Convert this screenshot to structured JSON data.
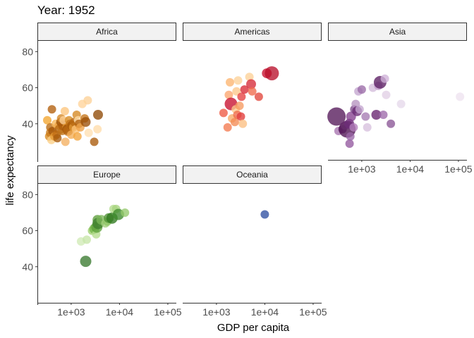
{
  "chart_data": {
    "type": "scatter",
    "title": "Year: 1952",
    "xlabel": "GDP per capita",
    "ylabel": "life expectancy",
    "x_scale": "log10",
    "xlim": [
      200,
      150000
    ],
    "ylim": [
      20,
      86
    ],
    "x_ticks": [
      {
        "value": 1000,
        "label": "1e+03"
      },
      {
        "value": 10000,
        "label": "1e+04"
      },
      {
        "value": 100000,
        "label": "1e+05"
      }
    ],
    "y_ticks": [
      {
        "value": 40,
        "label": "40"
      },
      {
        "value": 60,
        "label": "60"
      },
      {
        "value": 80,
        "label": "80"
      }
    ],
    "grid": false,
    "legend": "none",
    "facets": [
      {
        "name": "Africa",
        "points": [
          {
            "x": 320,
            "y": 42,
            "size": 6,
            "color": "#f2a52f"
          },
          {
            "x": 350,
            "y": 33,
            "size": 6,
            "color": "#d8891d"
          },
          {
            "x": 370,
            "y": 38,
            "size": 6,
            "color": "#b86a12"
          },
          {
            "x": 380,
            "y": 35,
            "size": 7,
            "color": "#c97a18"
          },
          {
            "x": 390,
            "y": 31,
            "size": 6,
            "color": "#fbcf86"
          },
          {
            "x": 400,
            "y": 48,
            "size": 6,
            "color": "#b25f0c"
          },
          {
            "x": 410,
            "y": 36,
            "size": 6,
            "color": "#a4560a"
          },
          {
            "x": 450,
            "y": 33,
            "size": 6,
            "color": "#e49833"
          },
          {
            "x": 480,
            "y": 40,
            "size": 6,
            "color": "#f7b75a"
          },
          {
            "x": 500,
            "y": 34,
            "size": 6,
            "color": "#c06d14"
          },
          {
            "x": 520,
            "y": 32,
            "size": 6,
            "color": "#a85b0b"
          },
          {
            "x": 550,
            "y": 39,
            "size": 6,
            "color": "#eaa040"
          },
          {
            "x": 580,
            "y": 37,
            "size": 7,
            "color": "#b66610"
          },
          {
            "x": 600,
            "y": 41,
            "size": 6,
            "color": "#9a4f08"
          },
          {
            "x": 620,
            "y": 43,
            "size": 6,
            "color": "#d48725"
          },
          {
            "x": 650,
            "y": 36,
            "size": 6,
            "color": "#c07419"
          },
          {
            "x": 680,
            "y": 39,
            "size": 7,
            "color": "#ad5c0d"
          },
          {
            "x": 700,
            "y": 42,
            "size": 6,
            "color": "#ffd39a"
          },
          {
            "x": 740,
            "y": 47,
            "size": 6,
            "color": "#fcc57e"
          },
          {
            "x": 760,
            "y": 30,
            "size": 6,
            "color": "#f4b060"
          },
          {
            "x": 800,
            "y": 38,
            "size": 6,
            "color": "#e5982d"
          },
          {
            "x": 830,
            "y": 37,
            "size": 7,
            "color": "#9e5009"
          },
          {
            "x": 860,
            "y": 36,
            "size": 7,
            "color": "#b86811"
          },
          {
            "x": 900,
            "y": 42,
            "size": 6,
            "color": "#d68a22"
          },
          {
            "x": 950,
            "y": 40,
            "size": 6,
            "color": "#c27217"
          },
          {
            "x": 1000,
            "y": 34,
            "size": 6,
            "color": "#f3ad55"
          },
          {
            "x": 1050,
            "y": 39,
            "size": 7,
            "color": "#a75808"
          },
          {
            "x": 1100,
            "y": 38,
            "size": 6,
            "color": "#e09632"
          },
          {
            "x": 1150,
            "y": 41,
            "size": 6,
            "color": "#ba6a13"
          },
          {
            "x": 1250,
            "y": 37,
            "size": 6,
            "color": "#fbc074"
          },
          {
            "x": 1300,
            "y": 45,
            "size": 6,
            "color": "#d58821"
          },
          {
            "x": 1350,
            "y": 33,
            "size": 6,
            "color": "#f2a43c"
          },
          {
            "x": 1400,
            "y": 42,
            "size": 6,
            "color": "#ffdca8"
          },
          {
            "x": 1450,
            "y": 40,
            "size": 6,
            "color": "#b0600e"
          },
          {
            "x": 1550,
            "y": 38,
            "size": 6,
            "color": "#eea247"
          },
          {
            "x": 1700,
            "y": 51,
            "size": 6,
            "color": "#ffd39a"
          },
          {
            "x": 1900,
            "y": 43,
            "size": 6,
            "color": "#c47519"
          },
          {
            "x": 2000,
            "y": 41,
            "size": 7,
            "color": "#9b4f08"
          },
          {
            "x": 2200,
            "y": 53,
            "size": 6,
            "color": "#fdd197"
          },
          {
            "x": 2300,
            "y": 35,
            "size": 6,
            "color": "#ffe0b2"
          },
          {
            "x": 3000,
            "y": 30,
            "size": 6,
            "color": "#a95a0a"
          },
          {
            "x": 3500,
            "y": 37,
            "size": 6,
            "color": "#ffdcaa"
          },
          {
            "x": 3600,
            "y": 45,
            "size": 7,
            "color": "#8f4a07"
          }
        ]
      },
      {
        "name": "Americas",
        "points": [
          {
            "x": 1400,
            "y": 46,
            "size": 6,
            "color": "#ee5a42"
          },
          {
            "x": 1700,
            "y": 38,
            "size": 6,
            "color": "#f37a50"
          },
          {
            "x": 1800,
            "y": 56,
            "size": 6,
            "color": "#fba56e"
          },
          {
            "x": 1900,
            "y": 63,
            "size": 6,
            "color": "#fcb56f"
          },
          {
            "x": 2000,
            "y": 51,
            "size": 9,
            "color": "#c8102e"
          },
          {
            "x": 2100,
            "y": 43,
            "size": 6,
            "color": "#f7aa66"
          },
          {
            "x": 2400,
            "y": 41,
            "size": 6,
            "color": "#f48a55"
          },
          {
            "x": 2500,
            "y": 48,
            "size": 6,
            "color": "#fcc98c"
          },
          {
            "x": 2600,
            "y": 58,
            "size": 6,
            "color": "#fdc88b"
          },
          {
            "x": 2700,
            "y": 45,
            "size": 6,
            "color": "#ee6b4b"
          },
          {
            "x": 2800,
            "y": 64,
            "size": 6,
            "color": "#fcd29a"
          },
          {
            "x": 3000,
            "y": 50,
            "size": 6,
            "color": "#f69a60"
          },
          {
            "x": 3200,
            "y": 44,
            "size": 6,
            "color": "#e23b3b"
          },
          {
            "x": 3300,
            "y": 55,
            "size": 6,
            "color": "#e54040"
          },
          {
            "x": 3500,
            "y": 40,
            "size": 6,
            "color": "#fbbf82"
          },
          {
            "x": 3800,
            "y": 59,
            "size": 6,
            "color": "#d92a36"
          },
          {
            "x": 4800,
            "y": 66,
            "size": 6,
            "color": "#fcd197"
          },
          {
            "x": 5200,
            "y": 62,
            "size": 7,
            "color": "#d62a39"
          },
          {
            "x": 5500,
            "y": 58,
            "size": 6,
            "color": "#ef6a4c"
          },
          {
            "x": 7500,
            "y": 55,
            "size": 6,
            "color": "#e2463c"
          },
          {
            "x": 11000,
            "y": 68,
            "size": 7,
            "color": "#c8102e"
          },
          {
            "x": 14000,
            "y": 68,
            "size": 10,
            "color": "#b9112b"
          }
        ]
      },
      {
        "name": "Asia",
        "points": [
          {
            "x": 300,
            "y": 44,
            "size": 13,
            "color": "#55185a"
          },
          {
            "x": 330,
            "y": 36,
            "size": 6,
            "color": "#a874b0"
          },
          {
            "x": 400,
            "y": 37,
            "size": 6,
            "color": "#7a3d85"
          },
          {
            "x": 450,
            "y": 39,
            "size": 6,
            "color": "#bb8fc5"
          },
          {
            "x": 500,
            "y": 37,
            "size": 12,
            "color": "#4e1252"
          },
          {
            "x": 550,
            "y": 40,
            "size": 7,
            "color": "#6d2c78"
          },
          {
            "x": 560,
            "y": 29,
            "size": 6,
            "color": "#93589f"
          },
          {
            "x": 580,
            "y": 33,
            "size": 6,
            "color": "#9a66a8"
          },
          {
            "x": 600,
            "y": 44,
            "size": 7,
            "color": "#843f8e"
          },
          {
            "x": 680,
            "y": 38,
            "size": 6,
            "color": "#b37fbc"
          },
          {
            "x": 700,
            "y": 48,
            "size": 6,
            "color": "#7e4a8b"
          },
          {
            "x": 750,
            "y": 51,
            "size": 6,
            "color": "#b693c0"
          },
          {
            "x": 800,
            "y": 47,
            "size": 7,
            "color": "#6a2a74"
          },
          {
            "x": 850,
            "y": 58,
            "size": 6,
            "color": "#c4a6cf"
          },
          {
            "x": 900,
            "y": 48,
            "size": 6,
            "color": "#c4a6cf"
          },
          {
            "x": 1000,
            "y": 59,
            "size": 6,
            "color": "#9b6ba8"
          },
          {
            "x": 1200,
            "y": 44,
            "size": 6,
            "color": "#a57bb2"
          },
          {
            "x": 1300,
            "y": 38,
            "size": 6,
            "color": "#d7c0de"
          },
          {
            "x": 1700,
            "y": 60,
            "size": 6,
            "color": "#d3bddb"
          },
          {
            "x": 2000,
            "y": 45,
            "size": 7,
            "color": "#68236f"
          },
          {
            "x": 2200,
            "y": 61,
            "size": 6,
            "color": "#c09acb"
          },
          {
            "x": 2400,
            "y": 63,
            "size": 9,
            "color": "#5b1d63"
          },
          {
            "x": 2800,
            "y": 45,
            "size": 6,
            "color": "#9d6aaa"
          },
          {
            "x": 3000,
            "y": 65,
            "size": 6,
            "color": "#cfb2d8"
          },
          {
            "x": 3200,
            "y": 56,
            "size": 6,
            "color": "#e1cfe6"
          },
          {
            "x": 4000,
            "y": 40,
            "size": 6,
            "color": "#8a5696"
          },
          {
            "x": 6500,
            "y": 51,
            "size": 6,
            "color": "#e6d8ea"
          },
          {
            "x": 108000,
            "y": 55,
            "size": 6,
            "color": "#eee3f0"
          }
        ]
      },
      {
        "name": "Europe",
        "points": [
          {
            "x": 1600,
            "y": 54,
            "size": 6,
            "color": "#d1ebb6"
          },
          {
            "x": 2100,
            "y": 55,
            "size": 6,
            "color": "#c7e6a8"
          },
          {
            "x": 2000,
            "y": 43,
            "size": 8,
            "color": "#3a7a2f"
          },
          {
            "x": 2700,
            "y": 60,
            "size": 6,
            "color": "#9ed06e"
          },
          {
            "x": 3000,
            "y": 61,
            "size": 7,
            "color": "#74b64a"
          },
          {
            "x": 3300,
            "y": 58,
            "size": 6,
            "color": "#b6dc8f"
          },
          {
            "x": 3400,
            "y": 62,
            "size": 8,
            "color": "#5ea13c"
          },
          {
            "x": 3500,
            "y": 66,
            "size": 7,
            "color": "#5f9f3e"
          },
          {
            "x": 3600,
            "y": 64,
            "size": 8,
            "color": "#3e7f2d"
          },
          {
            "x": 4200,
            "y": 66,
            "size": 7,
            "color": "#7bb65a"
          },
          {
            "x": 5100,
            "y": 64,
            "size": 6,
            "color": "#a4d07d"
          },
          {
            "x": 5600,
            "y": 65,
            "size": 6,
            "color": "#8fc565"
          },
          {
            "x": 6000,
            "y": 67,
            "size": 7,
            "color": "#4f9236"
          },
          {
            "x": 7000,
            "y": 67,
            "size": 8,
            "color": "#2f7a1f"
          },
          {
            "x": 7500,
            "y": 72,
            "size": 6,
            "color": "#b4dc8d"
          },
          {
            "x": 8500,
            "y": 72,
            "size": 6,
            "color": "#a6d47f"
          },
          {
            "x": 9500,
            "y": 69,
            "size": 8,
            "color": "#3d8a2b"
          },
          {
            "x": 13000,
            "y": 70,
            "size": 6,
            "color": "#95c96c"
          }
        ]
      },
      {
        "name": "Oceania",
        "points": [
          {
            "x": 10000,
            "y": 69,
            "size": 6,
            "color": "#2f4fa2"
          }
        ]
      }
    ]
  }
}
